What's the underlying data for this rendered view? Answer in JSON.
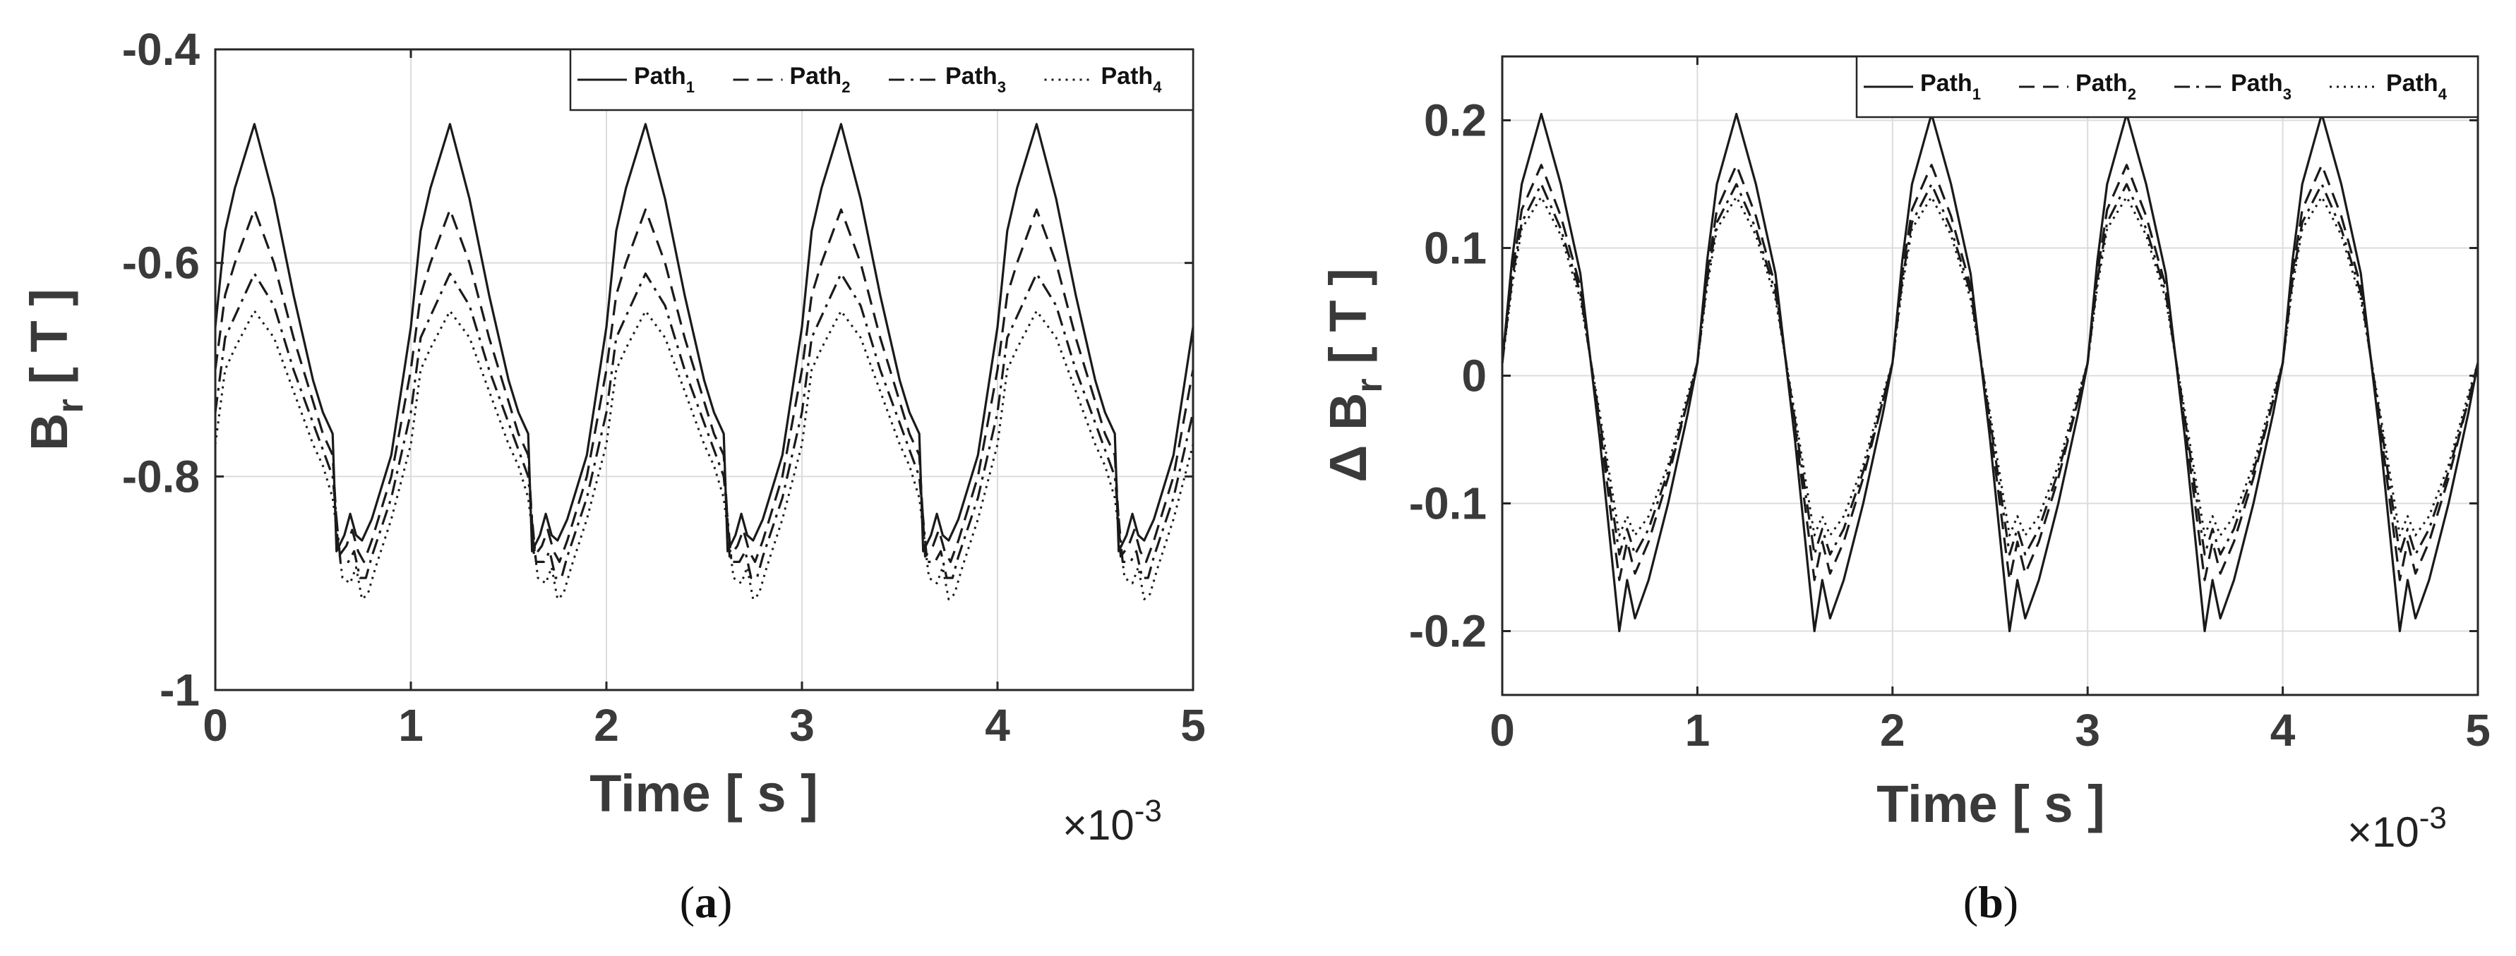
{
  "chart_data": [
    {
      "type": "line",
      "panel_label": "a",
      "caption_prefix": "(",
      "caption_suffix": ")",
      "xlabel": "Time [ s ]",
      "ylabel_main": "B",
      "ylabel_sub": "r",
      "ylabel_unit": " [ T ]",
      "x_exponent_prefix": "×10",
      "x_exponent": "-3",
      "xlim": [
        0,
        5
      ],
      "ylim": [
        -1,
        -0.4
      ],
      "xticks": [
        0,
        1,
        2,
        3,
        4,
        5
      ],
      "xtick_labels": [
        "0",
        "1",
        "2",
        "3",
        "4",
        "5"
      ],
      "yticks": [
        -1,
        -0.8,
        -0.6,
        -0.4
      ],
      "ytick_labels": [
        "-1",
        "-0.8",
        "-0.6",
        "-0.4"
      ],
      "grid": true,
      "legend_position": "top-right",
      "period_x": 1,
      "cycles": 5,
      "x_units": "ms",
      "series": [
        {
          "name": "Path",
          "sub": "1",
          "dash": "solid",
          "shape": [
            [
              0,
              -0.66
            ],
            [
              0.05,
              -0.57
            ],
            [
              0.1,
              -0.53
            ],
            [
              0.2,
              -0.47
            ],
            [
              0.3,
              -0.54
            ],
            [
              0.4,
              -0.63
            ],
            [
              0.5,
              -0.71
            ],
            [
              0.55,
              -0.74
            ],
            [
              0.6,
              -0.76
            ],
            [
              0.62,
              -0.87
            ],
            [
              0.66,
              -0.855
            ],
            [
              0.69,
              -0.835
            ],
            [
              0.72,
              -0.855
            ],
            [
              0.75,
              -0.86
            ],
            [
              0.8,
              -0.84
            ],
            [
              0.9,
              -0.78
            ],
            [
              1.0,
              -0.66
            ]
          ]
        },
        {
          "name": "Path",
          "sub": "2",
          "dash": "dashed",
          "shape": [
            [
              0,
              -0.7
            ],
            [
              0.05,
              -0.63
            ],
            [
              0.1,
              -0.6
            ],
            [
              0.2,
              -0.55
            ],
            [
              0.3,
              -0.6
            ],
            [
              0.4,
              -0.67
            ],
            [
              0.5,
              -0.73
            ],
            [
              0.55,
              -0.76
            ],
            [
              0.6,
              -0.78
            ],
            [
              0.63,
              -0.875
            ],
            [
              0.67,
              -0.865
            ],
            [
              0.7,
              -0.85
            ],
            [
              0.73,
              -0.87
            ],
            [
              0.76,
              -0.88
            ],
            [
              0.8,
              -0.86
            ],
            [
              0.9,
              -0.8
            ],
            [
              1.0,
              -0.7
            ]
          ]
        },
        {
          "name": "Path",
          "sub": "3",
          "dash": "dashdot",
          "shape": [
            [
              0,
              -0.74
            ],
            [
              0.05,
              -0.67
            ],
            [
              0.1,
              -0.65
            ],
            [
              0.2,
              -0.61
            ],
            [
              0.3,
              -0.64
            ],
            [
              0.4,
              -0.7
            ],
            [
              0.5,
              -0.75
            ],
            [
              0.55,
              -0.775
            ],
            [
              0.6,
              -0.8
            ],
            [
              0.64,
              -0.88
            ],
            [
              0.68,
              -0.88
            ],
            [
              0.71,
              -0.87
            ],
            [
              0.74,
              -0.895
            ],
            [
              0.77,
              -0.895
            ],
            [
              0.8,
              -0.875
            ],
            [
              0.9,
              -0.82
            ],
            [
              1.0,
              -0.74
            ]
          ]
        },
        {
          "name": "Path",
          "sub": "4",
          "dash": "dotted",
          "shape": [
            [
              0,
              -0.77
            ],
            [
              0.05,
              -0.7
            ],
            [
              0.1,
              -0.68
            ],
            [
              0.2,
              -0.645
            ],
            [
              0.3,
              -0.67
            ],
            [
              0.4,
              -0.72
            ],
            [
              0.5,
              -0.77
            ],
            [
              0.55,
              -0.79
            ],
            [
              0.6,
              -0.82
            ],
            [
              0.65,
              -0.895
            ],
            [
              0.69,
              -0.9
            ],
            [
              0.72,
              -0.885
            ],
            [
              0.75,
              -0.915
            ],
            [
              0.78,
              -0.91
            ],
            [
              0.82,
              -0.885
            ],
            [
              0.9,
              -0.84
            ],
            [
              1.0,
              -0.77
            ]
          ]
        }
      ]
    },
    {
      "type": "line",
      "panel_label": "b",
      "caption_prefix": "(",
      "caption_suffix": ")",
      "xlabel": "Time [ s ]",
      "ylabel_main": "Δ B",
      "ylabel_sub": "r",
      "ylabel_unit": " [ T ]",
      "x_exponent_prefix": "×10",
      "x_exponent": "-3",
      "xlim": [
        0,
        5
      ],
      "ylim": [
        -0.25,
        0.25
      ],
      "xticks": [
        0,
        1,
        2,
        3,
        4,
        5
      ],
      "xtick_labels": [
        "0",
        "1",
        "2",
        "3",
        "4",
        "5"
      ],
      "yticks": [
        -0.2,
        -0.1,
        0,
        0.1,
        0.2
      ],
      "ytick_labels": [
        "-0.2",
        "-0.1",
        "0",
        "0.1",
        "0.2"
      ],
      "grid": true,
      "legend_position": "top-right",
      "period_x": 1,
      "cycles": 5,
      "x_units": "ms",
      "series": [
        {
          "name": "Path",
          "sub": "1",
          "dash": "solid",
          "shape": [
            [
              0,
              0.01
            ],
            [
              0.05,
              0.09
            ],
            [
              0.1,
              0.15
            ],
            [
              0.2,
              0.205
            ],
            [
              0.3,
              0.15
            ],
            [
              0.4,
              0.08
            ],
            [
              0.5,
              -0.05
            ],
            [
              0.6,
              -0.2
            ],
            [
              0.64,
              -0.16
            ],
            [
              0.68,
              -0.19
            ],
            [
              0.75,
              -0.16
            ],
            [
              0.85,
              -0.1
            ],
            [
              0.95,
              -0.03
            ],
            [
              1.0,
              0.01
            ]
          ]
        },
        {
          "name": "Path",
          "sub": "2",
          "dash": "dashed",
          "shape": [
            [
              0,
              0.01
            ],
            [
              0.05,
              0.08
            ],
            [
              0.1,
              0.13
            ],
            [
              0.2,
              0.165
            ],
            [
              0.3,
              0.125
            ],
            [
              0.4,
              0.07
            ],
            [
              0.5,
              -0.04
            ],
            [
              0.6,
              -0.16
            ],
            [
              0.64,
              -0.13
            ],
            [
              0.68,
              -0.155
            ],
            [
              0.75,
              -0.13
            ],
            [
              0.85,
              -0.08
            ],
            [
              0.95,
              -0.02
            ],
            [
              1.0,
              0.01
            ]
          ]
        },
        {
          "name": "Path",
          "sub": "3",
          "dash": "dashdot",
          "shape": [
            [
              0,
              0.01
            ],
            [
              0.05,
              0.075
            ],
            [
              0.1,
              0.12
            ],
            [
              0.2,
              0.15
            ],
            [
              0.3,
              0.115
            ],
            [
              0.4,
              0.065
            ],
            [
              0.5,
              -0.035
            ],
            [
              0.6,
              -0.14
            ],
            [
              0.64,
              -0.12
            ],
            [
              0.68,
              -0.14
            ],
            [
              0.75,
              -0.12
            ],
            [
              0.85,
              -0.075
            ],
            [
              0.95,
              -0.02
            ],
            [
              1.0,
              0.01
            ]
          ]
        },
        {
          "name": "Path",
          "sub": "4",
          "dash": "dotted",
          "shape": [
            [
              0,
              0.01
            ],
            [
              0.05,
              0.07
            ],
            [
              0.1,
              0.115
            ],
            [
              0.2,
              0.14
            ],
            [
              0.3,
              0.11
            ],
            [
              0.4,
              0.06
            ],
            [
              0.5,
              -0.03
            ],
            [
              0.6,
              -0.125
            ],
            [
              0.64,
              -0.11
            ],
            [
              0.68,
              -0.125
            ],
            [
              0.75,
              -0.11
            ],
            [
              0.85,
              -0.07
            ],
            [
              0.95,
              -0.015
            ],
            [
              1.0,
              0.01
            ]
          ]
        }
      ]
    }
  ]
}
